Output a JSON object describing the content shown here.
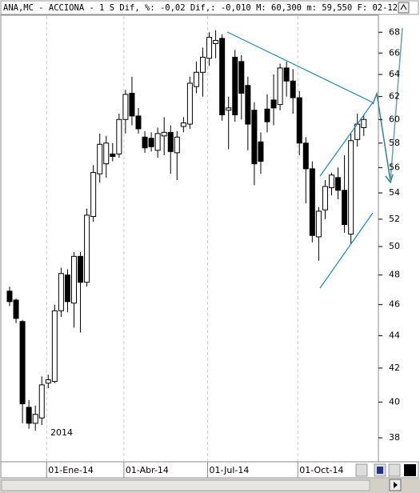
{
  "chart_data": {
    "type": "candlestick",
    "header": "ANA,MC - ACCIONA -  1 S Dif, %: -0,02 Dif,: -0,010 M: 60,300 m: 59,550 F: 02-12-",
    "year_label": "2014",
    "log_scale": true,
    "ylim": [
      36.8,
      69.6
    ],
    "yticks": [
      38,
      40,
      42,
      44,
      46,
      48,
      50,
      52,
      54,
      56,
      58,
      60,
      62,
      64,
      66,
      68
    ],
    "up_color": "#ffffff",
    "down_color": "#000000",
    "categories": [
      null,
      null,
      null,
      null,
      null,
      null,
      "01-Ene-14",
      null,
      null,
      null,
      null,
      null,
      null,
      null,
      null,
      null,
      null,
      null,
      "01-Abr-14",
      null,
      null,
      null,
      null,
      null,
      null,
      null,
      null,
      null,
      null,
      null,
      null,
      "01-Jul-14",
      null,
      null,
      null,
      null,
      null,
      null,
      null,
      null,
      null,
      null,
      null,
      null,
      null,
      "01-Oct-14",
      null,
      null,
      null,
      null,
      null,
      null,
      null,
      null,
      null,
      null
    ],
    "open": [
      46.9,
      46.3,
      44.9,
      39.7,
      38.8,
      39.1,
      41.1,
      41.2,
      45.6,
      48.0,
      46.1,
      49.3,
      47.5,
      52.2,
      55.5,
      56.3,
      57.1,
      57.1,
      60.0,
      62.3,
      60.3,
      58.5,
      58.4,
      57.4,
      58.6,
      58.9,
      57.2,
      59.4,
      59.6,
      62.9,
      64.2,
      65.5,
      66.9,
      67.4,
      60.8,
      65.6,
      65.2,
      63.0,
      60.8,
      58.1,
      60.9,
      61.7,
      61.3,
      64.6,
      63.4,
      61.9,
      58.0,
      55.9,
      50.7,
      52.7,
      54.4,
      55.2,
      54.2,
      50.9,
      58.3,
      59.3
    ],
    "high": [
      47.2,
      46.4,
      45.0,
      40.1,
      39.8,
      41.5,
      41.6,
      46.0,
      48.5,
      48.4,
      49.6,
      49.6,
      52.8,
      56.2,
      58.8,
      58.6,
      58.0,
      60.5,
      62.6,
      63.8,
      61.0,
      59.0,
      58.9,
      59.3,
      60.2,
      59.5,
      59.0,
      60.2,
      63.8,
      65.2,
      66.5,
      68.0,
      68.2,
      67.8,
      62.0,
      66.3,
      65.8,
      63.8,
      61.5,
      58.9,
      62.2,
      64.0,
      65.0,
      65.2,
      64.5,
      62.5,
      58.5,
      56.5,
      52.9,
      55.0,
      55.6,
      56.0,
      57.0,
      58.8,
      60.5,
      60.4
    ],
    "low": [
      45.9,
      44.8,
      38.8,
      38.5,
      38.4,
      38.7,
      40.8,
      41.1,
      45.2,
      45.5,
      44.5,
      44.2,
      47.2,
      51.8,
      54.8,
      55.2,
      56.5,
      56.8,
      58.8,
      59.5,
      58.8,
      57.2,
      57.3,
      56.8,
      57.0,
      55.5,
      55.0,
      58.9,
      59.2,
      62.3,
      62.0,
      64.8,
      65.5,
      59.9,
      57.5,
      59.8,
      60.0,
      57.4,
      54.6,
      55.5,
      58.9,
      59.5,
      60.8,
      62.0,
      60.5,
      57.0,
      53.2,
      50.3,
      49.0,
      52.0,
      53.8,
      53.5,
      51.0,
      50.2,
      57.7,
      58.6
    ],
    "close": [
      46.2,
      45.1,
      39.9,
      38.8,
      39.3,
      41.0,
      41.3,
      45.6,
      48.1,
      46.2,
      49.3,
      47.5,
      52.3,
      55.6,
      57.9,
      58.0,
      56.9,
      60.0,
      62.2,
      60.3,
      59.2,
      57.6,
      57.7,
      58.8,
      58.9,
      57.3,
      58.5,
      59.7,
      63.2,
      64.2,
      65.6,
      67.5,
      67.2,
      60.4,
      61.0,
      60.4,
      62.3,
      59.6,
      56.3,
      56.5,
      59.8,
      61.0,
      64.6,
      63.4,
      61.9,
      58.0,
      55.9,
      50.8,
      52.6,
      54.5,
      55.4,
      54.2,
      51.6,
      58.2,
      59.6,
      60.0
    ]
  }
}
